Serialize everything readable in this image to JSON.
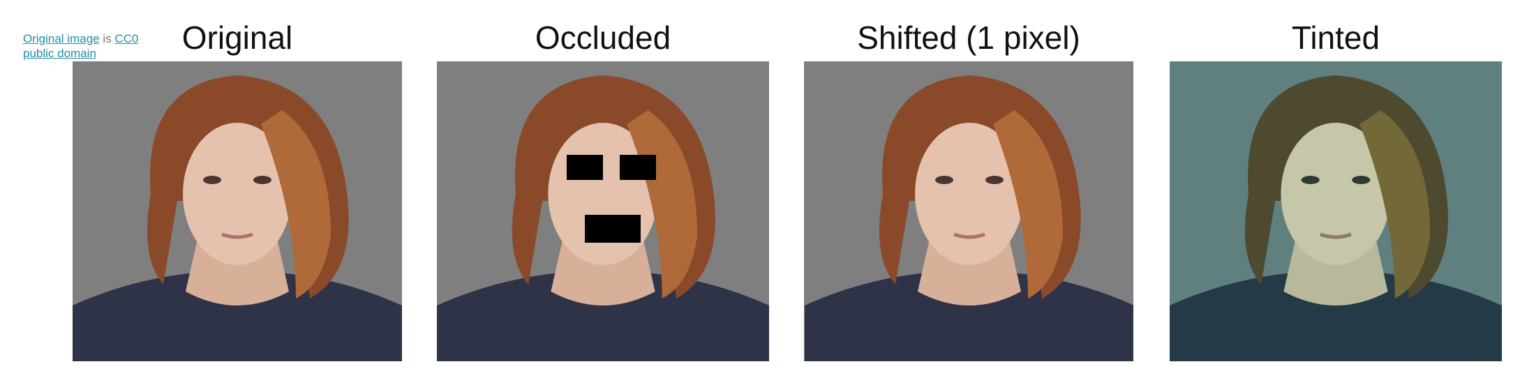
{
  "credit": {
    "link_image": "Original image",
    "connector": " is ",
    "link_license_line1": "CC0",
    "link_license_line2": "public domain"
  },
  "panels": [
    {
      "title": "Original",
      "background": "#7f7f7f"
    },
    {
      "title": "Occluded",
      "background": "#7f7f7f"
    },
    {
      "title": "Shifted (1 pixel)",
      "background": "#7f7f7f"
    },
    {
      "title": "Tinted",
      "background": "#5f807f"
    }
  ],
  "palette": {
    "hair": "#8a4a2a",
    "hair_highlight": "#b06a3a",
    "skin": "#e4c2ae",
    "shirt": "#2e3348",
    "occlusion": "#000000"
  }
}
